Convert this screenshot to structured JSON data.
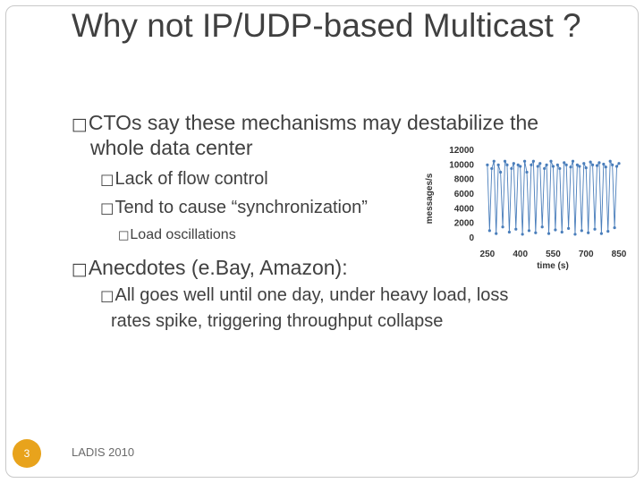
{
  "title": "Why not IP/UDP-based Multicast ?",
  "bullet_glyph": "□",
  "bullets": {
    "ctos": "CTOs say these mechanisms may destabilize the",
    "ctos_cont": "whole data center",
    "flow": "Lack of flow control",
    "sync": "Tend to cause “synchronization”",
    "osc": "Load oscillations",
    "anecdotes": "Anecdotes (e.Bay, Amazon):",
    "allgoes": "All goes well until one day, under heavy load, loss",
    "allgoes_cont": "rates spike, triggering throughput collapse"
  },
  "footer": {
    "text": "LADIS 2010",
    "page_number": "3"
  },
  "colors": {
    "series": "#4a7ebb",
    "page_dot": "#e8a31c"
  },
  "chart_data": {
    "type": "line",
    "title": "",
    "xlabel": "time (s)",
    "ylabel": "messages/s",
    "xlim": [
      230,
      850
    ],
    "ylim": [
      0,
      12000
    ],
    "xticks": [
      250,
      400,
      550,
      700,
      850
    ],
    "yticks": [
      0,
      2000,
      4000,
      6000,
      8000,
      10000,
      12000
    ],
    "series": [
      {
        "name": "",
        "x": [
          250,
          260,
          270,
          280,
          290,
          300,
          310,
          320,
          330,
          340,
          350,
          360,
          370,
          380,
          390,
          400,
          410,
          420,
          430,
          440,
          450,
          460,
          470,
          480,
          490,
          500,
          510,
          520,
          530,
          540,
          550,
          560,
          570,
          580,
          590,
          600,
          610,
          620,
          630,
          640,
          650,
          660,
          670,
          680,
          690,
          700,
          710,
          720,
          730,
          740,
          750,
          760,
          770,
          780,
          790,
          800,
          810,
          820,
          830,
          840,
          850
        ],
        "y": [
          10000,
          1000,
          9500,
          10500,
          600,
          10000,
          9000,
          1500,
          10500,
          10000,
          800,
          9500,
          10200,
          1200,
          10000,
          9800,
          500,
          10500,
          9000,
          1000,
          10000,
          10500,
          700,
          9800,
          10200,
          1500,
          9500,
          10000,
          600,
          10500,
          9800,
          1100,
          10000,
          9500,
          800,
          10300,
          10000,
          1300,
          9700,
          10500,
          500,
          10000,
          9800,
          1000,
          10200,
          9600,
          700,
          10400,
          10000,
          1200,
          9900,
          10300,
          600,
          10100,
          9700,
          900,
          10500,
          10000,
          1400,
          9800,
          10200
        ]
      }
    ]
  }
}
